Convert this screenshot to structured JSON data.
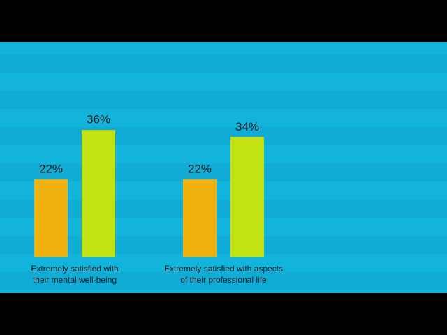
{
  "chart_data": {
    "type": "bar",
    "categories": [
      [
        "Extremely satisfied with",
        "their mental well-being"
      ],
      [
        "Extremely satisfied with aspects",
        "of their professional life"
      ]
    ],
    "series": [
      {
        "color": "#f0b10f",
        "values": [
          22,
          22
        ],
        "value_labels": [
          "22%",
          "22%"
        ]
      },
      {
        "color": "#c2e214",
        "values": [
          36,
          34
        ],
        "value_labels": [
          "36%",
          "34%"
        ]
      }
    ]
  }
}
